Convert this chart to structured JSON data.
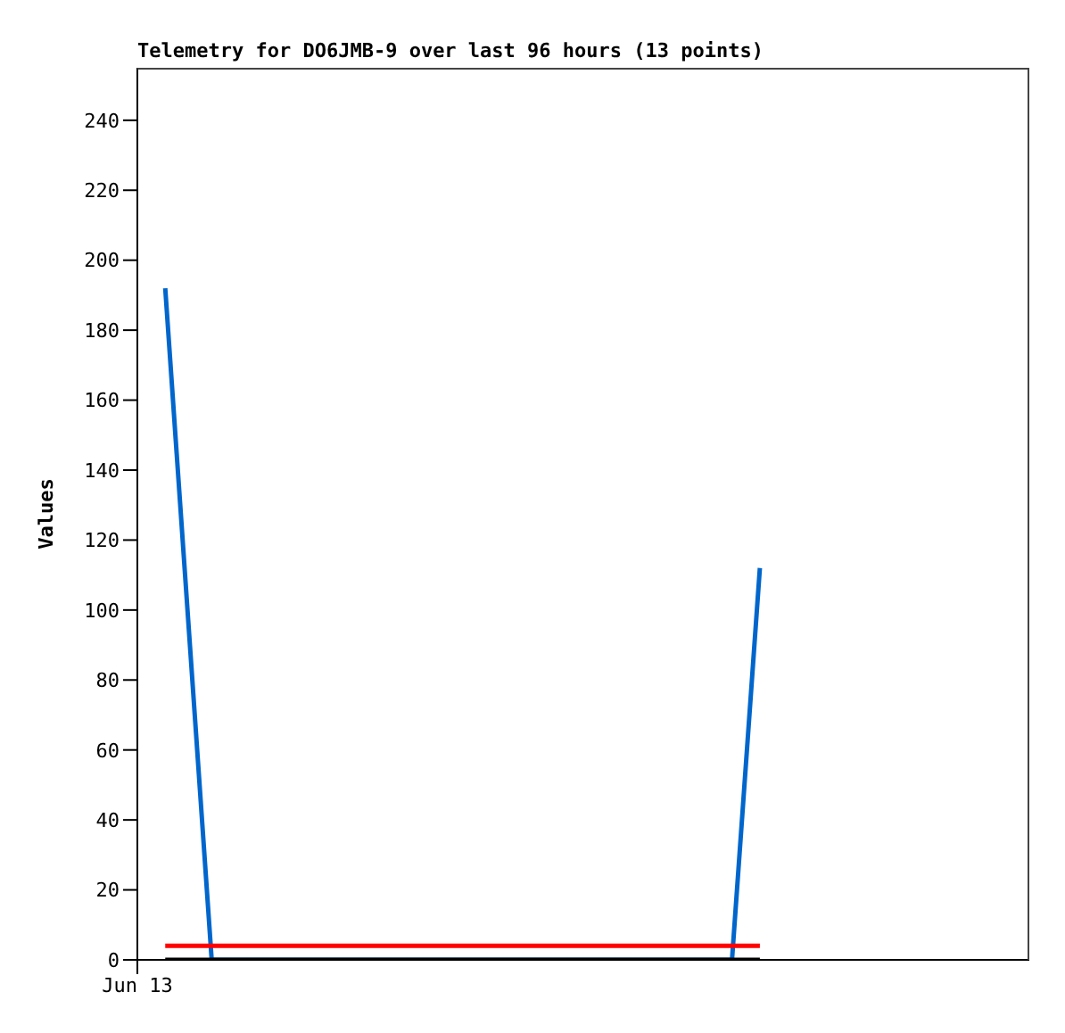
{
  "chart_data": {
    "type": "line",
    "title": "Telemetry for DO6JMB-9 over last 96 hours (13 points)",
    "ylabel": "Values",
    "categories": [
      "Jun 13",
      null,
      null,
      null,
      null,
      null,
      null,
      null,
      null,
      null,
      null,
      null,
      null,
      null,
      null,
      null,
      null,
      null,
      null,
      null,
      null,
      null,
      null,
      null,
      null,
      null,
      null,
      null,
      null,
      null,
      null,
      null,
      null,
      null,
      null,
      null,
      null,
      null,
      null,
      null,
      null,
      null,
      null,
      null,
      null,
      null,
      null,
      null,
      null,
      null,
      null,
      null,
      null,
      null,
      null,
      null,
      null,
      null,
      null,
      null,
      null,
      null,
      null,
      null,
      null,
      null,
      null,
      null,
      null,
      null,
      null,
      null,
      null,
      null,
      null,
      null,
      null,
      null,
      null,
      null,
      null,
      null,
      null,
      null,
      null,
      null,
      null,
      null,
      null,
      null,
      null,
      null,
      null,
      null,
      null,
      null,
      null
    ],
    "series": [
      {
        "color": "#0066cc",
        "values": [
          null,
          null,
          null,
          192,
          null,
          null,
          null,
          null,
          0,
          null,
          null,
          null,
          null,
          null,
          null,
          null,
          null,
          null,
          null,
          null,
          null,
          null,
          null,
          null,
          null,
          null,
          null,
          null,
          null,
          null,
          null,
          null,
          null,
          null,
          null,
          null,
          null,
          null,
          null,
          null,
          null,
          null,
          null,
          null,
          null,
          null,
          null,
          null,
          null,
          null,
          null,
          null,
          null,
          null,
          null,
          null,
          null,
          null,
          null,
          null,
          null,
          null,
          null,
          null,
          0,
          null,
          null,
          112,
          null,
          null,
          null,
          null,
          null,
          null,
          null,
          null,
          null,
          null,
          null,
          null,
          null,
          null,
          null,
          null,
          null,
          null,
          null,
          null,
          null,
          null,
          null,
          null,
          null,
          null,
          null,
          null,
          null
        ]
      },
      {
        "color": "#ff0000",
        "values": [
          null,
          null,
          null,
          4,
          null,
          null,
          null,
          null,
          4,
          null,
          null,
          null,
          null,
          null,
          null,
          null,
          null,
          null,
          null,
          null,
          null,
          null,
          null,
          null,
          null,
          null,
          null,
          null,
          null,
          null,
          null,
          null,
          null,
          null,
          null,
          null,
          null,
          null,
          null,
          null,
          null,
          null,
          null,
          null,
          null,
          null,
          null,
          null,
          null,
          null,
          null,
          null,
          null,
          null,
          null,
          null,
          null,
          null,
          null,
          null,
          null,
          null,
          null,
          null,
          4,
          null,
          null,
          4,
          null,
          null,
          null,
          null,
          null,
          null,
          null,
          null,
          null,
          null,
          null,
          null,
          null,
          null,
          null,
          null,
          null,
          null,
          null,
          null,
          null,
          null,
          null,
          null,
          null,
          null,
          null,
          null,
          null
        ]
      },
      {
        "color": "#000000",
        "values": [
          null,
          null,
          null,
          0,
          null,
          null,
          null,
          null,
          0,
          null,
          null,
          null,
          null,
          null,
          null,
          null,
          null,
          null,
          null,
          null,
          null,
          null,
          null,
          null,
          null,
          null,
          null,
          null,
          null,
          null,
          null,
          null,
          null,
          null,
          null,
          null,
          null,
          null,
          null,
          null,
          null,
          null,
          null,
          null,
          null,
          null,
          null,
          null,
          null,
          null,
          null,
          null,
          null,
          null,
          null,
          null,
          null,
          null,
          null,
          null,
          null,
          null,
          null,
          null,
          0,
          null,
          null,
          0,
          null,
          null,
          null,
          null,
          null,
          null,
          null,
          null,
          null,
          null,
          null,
          null,
          null,
          null,
          null,
          null,
          null,
          null,
          null,
          null,
          null,
          null,
          null,
          null,
          null,
          null,
          null,
          null,
          null
        ]
      }
    ],
    "ylim": [
      0,
      255
    ],
    "yticks": [
      0,
      20,
      40,
      60,
      80,
      100,
      120,
      140,
      160,
      180,
      200,
      220,
      240
    ],
    "grid": false,
    "marker": "none",
    "line_style": "solid"
  }
}
